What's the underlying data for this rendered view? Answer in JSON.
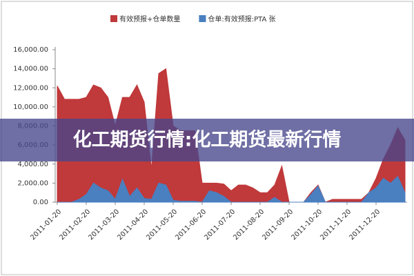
{
  "chart_data": {
    "type": "area",
    "categories": [
      "2011-01-20",
      null,
      null,
      null,
      "2011-02-20",
      null,
      null,
      null,
      "2011-03-20",
      null,
      null,
      null,
      "2011-04-20",
      null,
      null,
      null,
      "2011-05-20",
      null,
      null,
      null,
      "2011-06-20",
      null,
      null,
      null,
      "2011-07-20",
      null,
      null,
      null,
      "2011-08-20",
      null,
      null,
      null,
      "2011-09-20",
      null,
      null,
      null,
      "2011-10-20",
      null,
      null,
      null,
      "2011-11-20",
      null,
      null,
      null,
      "2011-12-20",
      null,
      null,
      null,
      null
    ],
    "series": [
      {
        "name": "有效预报+仓单数量",
        "color": "#c0393b",
        "values": [
          12200,
          10800,
          10800,
          10800,
          11000,
          12300,
          12000,
          11000,
          8000,
          11000,
          11000,
          12300,
          10500,
          3500,
          13500,
          14000,
          8000,
          7500,
          7500,
          7500,
          2000,
          2000,
          2000,
          1900,
          1200,
          1800,
          1800,
          1500,
          1000,
          1000,
          1800,
          3800,
          0,
          0,
          0,
          1000,
          1800,
          0,
          300,
          300,
          300,
          300,
          300,
          1000,
          2500,
          4500,
          6000,
          7800,
          6500
        ]
      },
      {
        "name": "仓单:有效预报:PTA 张",
        "color": "#4a7fc0",
        "values": [
          0,
          0,
          0,
          300,
          800,
          2000,
          1500,
          1200,
          300,
          2400,
          600,
          1500,
          400,
          300,
          2000,
          1800,
          200,
          100,
          100,
          100,
          0,
          1200,
          1000,
          600,
          0,
          0,
          0,
          0,
          0,
          0,
          500,
          0,
          0,
          0,
          0,
          800,
          1700,
          0,
          0,
          0,
          0,
          0,
          0,
          1000,
          1500,
          2500,
          2000,
          2700,
          1000
        ]
      }
    ],
    "ylim": [
      0,
      16000
    ],
    "yticks": [
      {
        "value": 0,
        "label": "0.00"
      },
      {
        "value": 2000,
        "label": "2,000.00"
      },
      {
        "value": 4000,
        "label": "4,000.00"
      },
      {
        "value": 6000,
        "label": "6,000.00"
      },
      {
        "value": 8000,
        "label": "8,000.00"
      },
      {
        "value": 10000,
        "label": "10,000.00"
      },
      {
        "value": 12000,
        "label": "12,000.00"
      },
      {
        "value": 14000,
        "label": "14,000.00"
      },
      {
        "value": 16000,
        "label": "16,000.00"
      }
    ],
    "legend": "top"
  },
  "banner": "化工期货行情:化工期货最新行情"
}
